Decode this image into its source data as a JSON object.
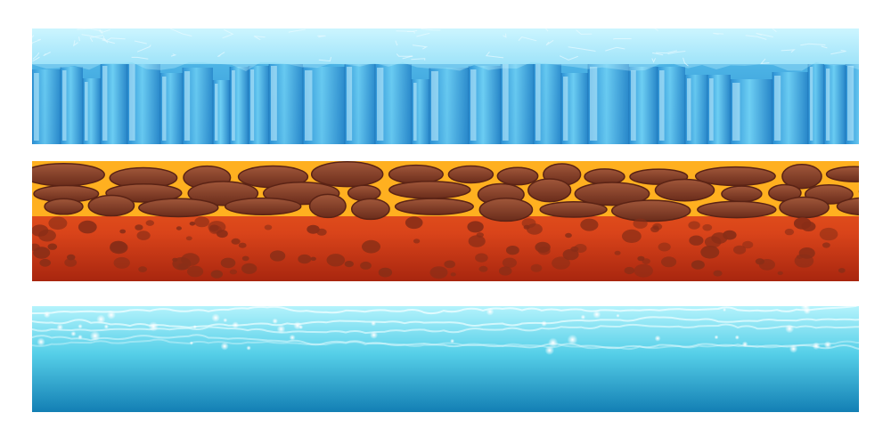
{
  "tiles": [
    {
      "id": "ice",
      "theme": "ice-glacier",
      "colors": {
        "top": "#bff4ff",
        "mid": "#5fc8f0",
        "dark": "#1e7fc4",
        "highlight": "#e6fbff"
      }
    },
    {
      "id": "lava",
      "theme": "lava-rock",
      "colors": {
        "rock": "#7a3522",
        "rock_light": "#a55a3c",
        "lava": "#ffb020",
        "lava_glow": "#ffe36a",
        "base": "#e2451b",
        "base_dark": "#a8260f"
      }
    },
    {
      "id": "water",
      "theme": "water-surface",
      "colors": {
        "top": "#a6f0fb",
        "ripple": "#e9fdff",
        "mid": "#38bfdd",
        "bottom": "#0f7cb0"
      }
    }
  ]
}
